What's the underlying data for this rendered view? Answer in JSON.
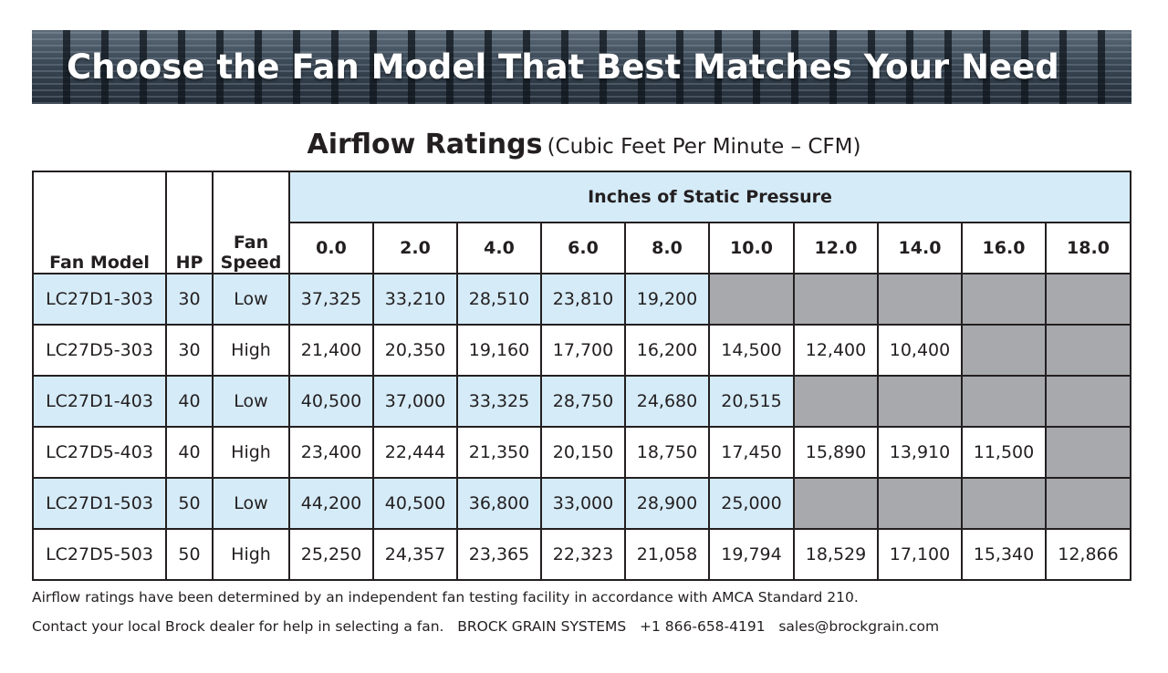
{
  "banner": {
    "title": "Choose the Fan Model That Best Matches Your Need"
  },
  "subtitle": {
    "main": "Airflow Ratings",
    "sub": "(Cubic Feet Per Minute – CFM)"
  },
  "table": {
    "headers": {
      "fan_model": "Fan Model",
      "hp": "HP",
      "fan_speed_line1": "Fan",
      "fan_speed_line2": "Speed",
      "pressure_group": "Inches of Static Pressure",
      "pressures": [
        "0.0",
        "2.0",
        "4.0",
        "6.0",
        "8.0",
        "10.0",
        "12.0",
        "14.0",
        "16.0",
        "18.0"
      ]
    },
    "rows": [
      {
        "model": "LC27D1-303",
        "hp": "30",
        "speed": "Low",
        "values": [
          "37,325",
          "33,210",
          "28,510",
          "23,810",
          "19,200",
          null,
          null,
          null,
          null,
          null
        ]
      },
      {
        "model": "LC27D5-303",
        "hp": "30",
        "speed": "High",
        "values": [
          "21,400",
          "20,350",
          "19,160",
          "17,700",
          "16,200",
          "14,500",
          "12,400",
          "10,400",
          null,
          null
        ]
      },
      {
        "model": "LC27D1-403",
        "hp": "40",
        "speed": "Low",
        "values": [
          "40,500",
          "37,000",
          "33,325",
          "28,750",
          "24,680",
          "20,515",
          null,
          null,
          null,
          null
        ]
      },
      {
        "model": "LC27D5-403",
        "hp": "40",
        "speed": "High",
        "values": [
          "23,400",
          "22,444",
          "21,350",
          "20,150",
          "18,750",
          "17,450",
          "15,890",
          "13,910",
          "11,500",
          null
        ]
      },
      {
        "model": "LC27D1-503",
        "hp": "50",
        "speed": "Low",
        "values": [
          "44,200",
          "40,500",
          "36,800",
          "33,000",
          "28,900",
          "25,000",
          null,
          null,
          null,
          null
        ]
      },
      {
        "model": "LC27D5-503",
        "hp": "50",
        "speed": "High",
        "values": [
          "25,250",
          "24,357",
          "23,365",
          "22,323",
          "21,058",
          "19,794",
          "18,529",
          "17,100",
          "15,340",
          "12,866"
        ]
      }
    ]
  },
  "footnotes": {
    "line1": "Airflow ratings have been determined by an independent fan testing facility in accordance with AMCA Standard 210.",
    "line2": "Contact your local Brock dealer for help in selecting a fan.   BROCK GRAIN SYSTEMS   +1 866-658-4191   sales@brockgrain.com"
  },
  "colors": {
    "row_highlight": "#d5ebf8",
    "unavailable_cell": "#a8a9ad",
    "banner_bg": "#2a3642"
  }
}
